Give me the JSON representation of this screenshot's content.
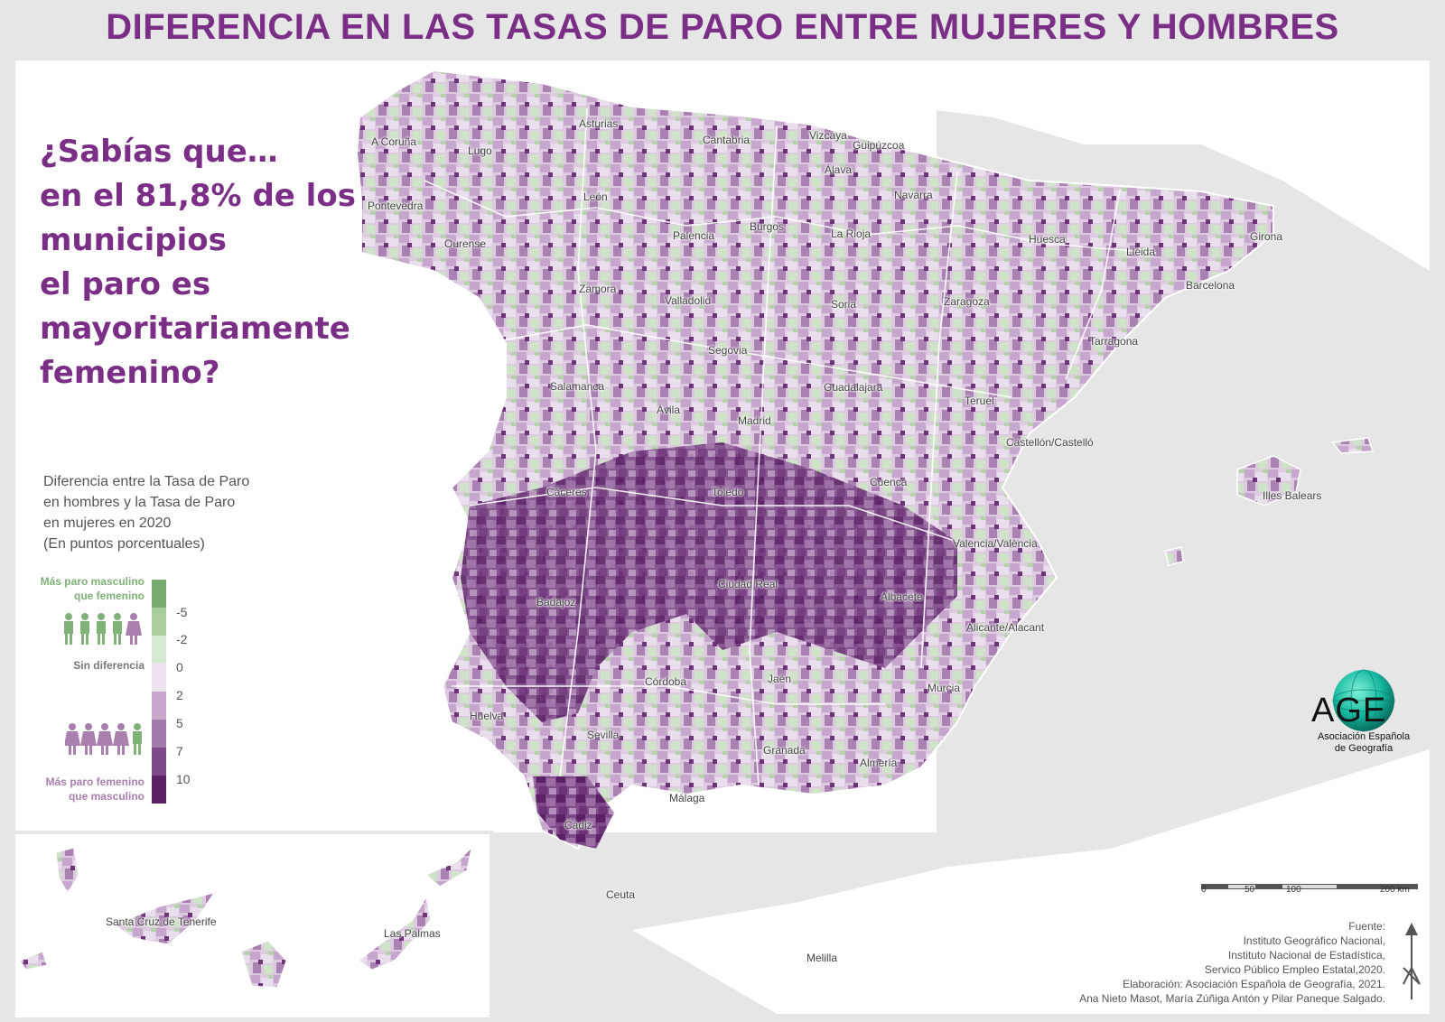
{
  "title": "DIFERENCIA EN LAS TASAS DE PARO ENTRE MUJERES Y HOMBRES",
  "question": [
    "¿Sabías que…",
    "en el 81,8% de los",
    "municipios",
    "el paro es",
    "mayoritariamente",
    "femenino?"
  ],
  "legend": {
    "title": [
      "Diferencia entre la Tasa de Paro",
      "en hombres y la Tasa de Paro",
      "en mujeres en 2020",
      "(En puntos porcentuales)"
    ],
    "top_label": [
      "Más paro masculino",
      "que femenino"
    ],
    "middle_label": "Sin diferencia",
    "bottom_label": [
      "Más paro femenino",
      "que masculino"
    ],
    "ticks": [
      "-5",
      "-2",
      "0",
      "2",
      "5",
      "7",
      "10"
    ],
    "colors": [
      "#7aab6e",
      "#a9cd9d",
      "#d6ead1",
      "#ece3ee",
      "#c8a8cc",
      "#a27aaa",
      "#7e4a89",
      "#5b2066"
    ]
  },
  "places": {
    "a_coruna": "A Coruña",
    "lugo": "Lugo",
    "asturias": "Asturias",
    "cantabria": "Cantabria",
    "vizcaya": "Vizcaya",
    "guipuzcoa": "Guipúzcoa",
    "alava": "Álava",
    "navarra": "Navarra",
    "pontevedra": "Pontevedra",
    "ourense": "Ourense",
    "leon": "León",
    "palencia": "Palencia",
    "burgos": "Burgos",
    "la_rioja": "La Rioja",
    "huesca": "Huesca",
    "lleida": "Lleida",
    "girona": "Girona",
    "barcelona": "Barcelona",
    "zamora": "Zamora",
    "valladolid": "Valladolid",
    "soria": "Soria",
    "zaragoza": "Zaragoza",
    "tarragona": "Tarragona",
    "segovia": "Segovia",
    "salamanca": "Salamanca",
    "guadalajara": "Guadalajara",
    "avila": "Ávila",
    "teruel": "Teruel",
    "madrid": "Madrid",
    "castellon": "Castellón/Castelló",
    "caceres": "Cáceres",
    "toledo": "Toledo",
    "cuenca": "Cuenca",
    "illes_balears": "Illes Balears",
    "valencia": "Valencia/València",
    "ciudad_real": "Ciudad Real",
    "badajoz": "Badajoz",
    "albacete": "Albacete",
    "alicante": "Alicante/Alacant",
    "cordoba": "Córdoba",
    "jaen": "Jaén",
    "murcia": "Murcia",
    "huelva": "Huelva",
    "sevilla": "Sevilla",
    "granada": "Granada",
    "almeria": "Almería",
    "malaga": "Málaga",
    "cadiz": "Cádiz",
    "ceuta": "Ceuta",
    "melilla": "Melilla",
    "santa_cruz": "Santa Cruz de Tenerife",
    "las_palmas": "Las Palmas"
  },
  "logo": {
    "text": "AGE",
    "sub": [
      "Asociación Española",
      "de Geografía"
    ]
  },
  "scale": {
    "labels": [
      "0",
      "50",
      "100",
      "200 km"
    ]
  },
  "credits": [
    "Fuente:",
    "Instituto Geográfico Nacional,",
    "Instituto Nacional de Estadística,",
    "Servico Público Empleo Estatal,2020.",
    "Elaboración: Asociación Española de Geografía, 2021.",
    "Ana Nieto Masot, María Zúñiga Antón y Pilar Paneque Salgado."
  ]
}
